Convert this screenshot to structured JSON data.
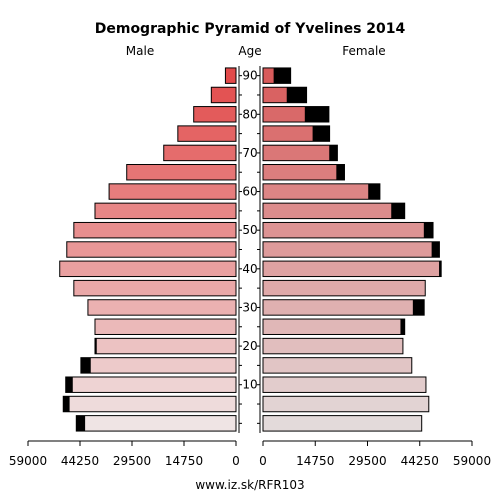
{
  "chart_data": {
    "type": "bar",
    "title": "Demographic Pyramid of Yvelines 2014",
    "left_label": "Male",
    "center_label": "Age",
    "right_label": "Female",
    "footer": "www.iz.sk/RFR103",
    "age_ticks": [
      "10",
      "20",
      "30",
      "40",
      "50",
      "60",
      "70",
      "80",
      "90"
    ],
    "value_ticks_left": [
      "59000",
      "44250",
      "29500",
      "14750",
      "0"
    ],
    "value_ticks_right": [
      "0",
      "14750",
      "29500",
      "44250",
      "59000"
    ],
    "xlim": [
      0,
      59000
    ],
    "age_groups": [
      "0-4",
      "5-9",
      "10-14",
      "15-19",
      "20-24",
      "25-29",
      "30-34",
      "35-39",
      "40-44",
      "45-49",
      "50-54",
      "55-59",
      "60-64",
      "65-69",
      "70-74",
      "75-79",
      "80-84",
      "85-89",
      "90+"
    ],
    "male_total": [
      45300,
      49000,
      48300,
      44000,
      40000,
      40000,
      42000,
      46000,
      50000,
      48000,
      46000,
      40000,
      36000,
      31000,
      20500,
      16500,
      12000,
      7000,
      3000
    ],
    "male_black": [
      2500,
      1800,
      2000,
      2800,
      500,
      0,
      0,
      0,
      0,
      0,
      0,
      0,
      0,
      0,
      0,
      0,
      0,
      0,
      0
    ],
    "female_total": [
      44800,
      46800,
      46000,
      42000,
      39500,
      40000,
      45500,
      45800,
      50300,
      49800,
      48000,
      40000,
      33000,
      23000,
      21000,
      18800,
      18600,
      12300,
      7800
    ],
    "female_black": [
      0,
      0,
      0,
      0,
      0,
      1200,
      3200,
      0,
      600,
      2200,
      2600,
      3800,
      3300,
      2300,
      2300,
      4800,
      6800,
      5600,
      4800
    ],
    "colors": {
      "male_light": "#efe4e4",
      "male_dark": "#e24a4a",
      "female_light": "#e3dada",
      "female_dark": "#d85b5b",
      "overflow": "#000000"
    }
  }
}
